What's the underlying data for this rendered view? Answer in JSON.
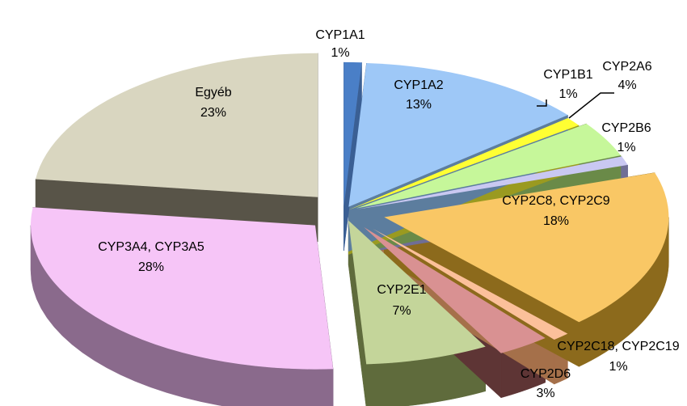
{
  "chart_data": {
    "type": "pie",
    "title": "",
    "legend": "none",
    "categories": [
      "CYP1A1",
      "CYP1A2",
      "CYP1B1",
      "CYP2A6",
      "CYP2B6",
      "CYP2C8, CYP2C9",
      "CYP2C18, CYP2C19",
      "CYP2D6",
      "CYP2E1",
      "CYP3A4, CYP3A5",
      "Egyéb"
    ],
    "values": [
      1,
      13,
      1,
      4,
      1,
      18,
      1,
      3,
      7,
      28,
      23
    ],
    "value_labels": [
      "1%",
      "13%",
      "1%",
      "4%",
      "1%",
      "18%",
      "1%",
      "3%",
      "7%",
      "28%",
      "23%"
    ],
    "colors": [
      "#4a7fc7",
      "#9ec8f7",
      "#ffff33",
      "#c6f79a",
      "#c9c8f2",
      "#f9c765",
      "#fbc09a",
      "#d99192",
      "#c4d59a",
      "#f6c5f7",
      "#d9d6c0"
    ],
    "side_colors": [
      "#3a5f94",
      "#5c7d9e",
      "#9a9a20",
      "#6a8a48",
      "#6f6e96",
      "#8c6a1c",
      "#a5704a",
      "#5e3535",
      "#5f6b3c",
      "#8a6a8c",
      "#585448"
    ]
  }
}
